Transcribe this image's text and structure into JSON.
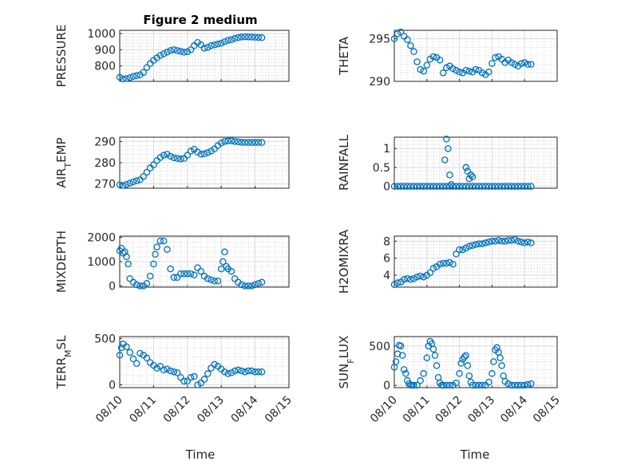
{
  "figure": {
    "title": "Figure 2 medium",
    "xlabel": "Time",
    "marker_color": "#0072bd"
  },
  "x_ticks": [
    "08/10",
    "08/11",
    "08/12",
    "08/13",
    "08/14",
    "08/15"
  ],
  "chart_data": [
    {
      "type": "scatter",
      "id": "pressure",
      "ylabel": "PRESSURE",
      "yticks": [
        800,
        900,
        1000
      ],
      "ylim": [
        705,
        1020
      ],
      "xlim": [
        "08/10",
        "08/15"
      ],
      "grid": true,
      "minor_grid": true,
      "show_xticklabels": false,
      "series": [
        {
          "x": [
            0,
            0.1,
            0.2,
            0.3,
            0.4,
            0.5,
            0.6,
            0.7,
            0.8,
            0.9,
            1.0,
            1.1,
            1.2,
            1.3,
            1.4,
            1.5,
            1.6,
            1.7,
            1.8,
            1.9,
            2.0,
            2.1,
            2.2,
            2.3,
            2.4,
            2.5,
            2.6,
            2.7,
            2.8,
            2.9,
            3.0,
            3.1,
            3.2,
            3.3,
            3.4,
            3.5,
            3.6,
            3.7,
            3.8,
            3.9,
            4.0,
            4.1,
            4.2
          ],
          "y": [
            730,
            720,
            722,
            728,
            735,
            740,
            745,
            760,
            790,
            815,
            835,
            850,
            865,
            875,
            885,
            895,
            900,
            895,
            890,
            885,
            888,
            900,
            925,
            945,
            930,
            910,
            915,
            925,
            930,
            935,
            940,
            950,
            958,
            962,
            970,
            975,
            978,
            980,
            979,
            978,
            977,
            976,
            975
          ]
        }
      ]
    },
    {
      "type": "scatter",
      "id": "theta",
      "ylabel": "THETA",
      "yticks": [
        290,
        295
      ],
      "ylim": [
        290,
        296
      ],
      "xlim": [
        "08/10",
        "08/15"
      ],
      "grid": true,
      "minor_grid": true,
      "show_xticklabels": false,
      "series": [
        {
          "x": [
            0,
            0.1,
            0.2,
            0.3,
            0.4,
            0.5,
            0.6,
            0.7,
            0.8,
            0.9,
            1.0,
            1.1,
            1.2,
            1.3,
            1.4,
            1.5,
            1.6,
            1.7,
            1.8,
            1.9,
            2.0,
            2.1,
            2.2,
            2.3,
            2.4,
            2.5,
            2.6,
            2.7,
            2.8,
            2.9,
            3.0,
            3.1,
            3.2,
            3.3,
            3.4,
            3.5,
            3.6,
            3.7,
            3.8,
            3.9,
            4.0,
            4.1,
            4.2
          ],
          "y": [
            295.0,
            295.6,
            295.8,
            295.3,
            294.9,
            294.2,
            293.5,
            292.3,
            291.4,
            291.2,
            291.9,
            292.6,
            292.9,
            292.8,
            292.5,
            291.0,
            291.6,
            291.8,
            291.5,
            291.3,
            291.1,
            291.0,
            291.3,
            291.2,
            291.1,
            291.4,
            291.3,
            291.0,
            290.8,
            291.1,
            292.1,
            292.8,
            292.9,
            292.6,
            292.2,
            292.5,
            292.2,
            292.0,
            291.8,
            292.1,
            292.2,
            292.0,
            292.0
          ]
        }
      ]
    },
    {
      "type": "scatter",
      "id": "air_temp",
      "ylabel": "AIR_TEMP",
      "yticks": [
        270,
        280,
        290
      ],
      "ylim": [
        268,
        292
      ],
      "xlim": [
        "08/10",
        "08/15"
      ],
      "grid": true,
      "minor_grid": true,
      "show_xticklabels": false,
      "series": [
        {
          "x": [
            0,
            0.1,
            0.2,
            0.3,
            0.4,
            0.5,
            0.6,
            0.7,
            0.8,
            0.9,
            1.0,
            1.1,
            1.2,
            1.3,
            1.4,
            1.5,
            1.6,
            1.7,
            1.8,
            1.9,
            2.0,
            2.1,
            2.2,
            2.3,
            2.4,
            2.5,
            2.6,
            2.7,
            2.8,
            2.9,
            3.0,
            3.1,
            3.2,
            3.3,
            3.4,
            3.5,
            3.6,
            3.7,
            3.8,
            3.9,
            4.0,
            4.1,
            4.2
          ],
          "y": [
            269.6,
            269.3,
            269.8,
            270.4,
            271.0,
            271.5,
            272.0,
            273.5,
            275.5,
            277.5,
            279.0,
            281.0,
            282.5,
            283.5,
            284.0,
            283.0,
            282.3,
            282.0,
            281.8,
            282.0,
            283.5,
            285.5,
            286.3,
            285.0,
            284.0,
            284.2,
            284.8,
            285.5,
            286.5,
            288.0,
            289.3,
            290.0,
            290.2,
            290.3,
            290.0,
            289.8,
            289.6,
            289.5,
            289.5,
            289.5,
            289.5,
            289.5,
            289.5
          ]
        }
      ]
    },
    {
      "type": "scatter",
      "id": "rainfall",
      "ylabel": "RAINFALL",
      "yticks": [
        0,
        0.5,
        1
      ],
      "ylim": [
        -0.05,
        1.3
      ],
      "ytick_labels": [
        "0",
        "0.5",
        "1"
      ],
      "xlim": [
        "08/10",
        "08/15"
      ],
      "grid": true,
      "minor_grid": true,
      "show_xticklabels": false,
      "series": [
        {
          "x": [
            0,
            0.1,
            0.2,
            0.3,
            0.4,
            0.5,
            0.6,
            0.7,
            0.8,
            0.9,
            1.0,
            1.1,
            1.2,
            1.3,
            1.4,
            1.5,
            1.6,
            1.7,
            1.8,
            1.9,
            2.0,
            2.1,
            2.2,
            2.3,
            2.4,
            2.5,
            2.6,
            2.7,
            2.8,
            2.9,
            3.0,
            3.1,
            3.2,
            3.3,
            3.4,
            3.5,
            3.6,
            3.7,
            3.8,
            3.9,
            4.0,
            4.1,
            4.2,
            1.55,
            1.6,
            1.65,
            1.7,
            1.75,
            2.2,
            2.25,
            2.3,
            2.35,
            2.4
          ],
          "y": [
            0,
            0,
            0,
            0,
            0,
            0,
            0,
            0,
            0,
            0,
            0,
            0,
            0,
            0,
            0,
            0,
            0,
            0,
            0,
            0,
            0,
            0,
            0,
            0,
            0,
            0,
            0,
            0,
            0,
            0,
            0,
            0,
            0,
            0,
            0,
            0,
            0,
            0,
            0,
            0,
            0,
            0,
            0,
            0.7,
            1.25,
            1.0,
            0.3,
            0.05,
            0.5,
            0.4,
            0.2,
            0.3,
            0.25
          ]
        }
      ]
    },
    {
      "type": "scatter",
      "id": "mixdepth",
      "ylabel": "MIXDEPTH",
      "yticks": [
        0,
        1000,
        2000
      ],
      "ylim": [
        -50,
        2050
      ],
      "xlim": [
        "08/10",
        "08/15"
      ],
      "grid": true,
      "minor_grid": true,
      "show_xticklabels": false,
      "series": [
        {
          "x": [
            0,
            0.05,
            0.1,
            0.15,
            0.2,
            0.25,
            0.3,
            0.4,
            0.5,
            0.6,
            0.7,
            0.8,
            0.9,
            1.0,
            1.05,
            1.1,
            1.2,
            1.3,
            1.4,
            1.5,
            1.6,
            1.7,
            1.8,
            1.9,
            2.0,
            2.1,
            2.2,
            2.3,
            2.4,
            2.5,
            2.6,
            2.7,
            2.8,
            2.9,
            3.0,
            3.05,
            3.1,
            3.15,
            3.2,
            3.3,
            3.4,
            3.5,
            3.6,
            3.7,
            3.8,
            3.9,
            4.0,
            4.1,
            4.2
          ],
          "y": [
            1450,
            1550,
            1350,
            1400,
            1200,
            900,
            300,
            150,
            50,
            0,
            0,
            100,
            400,
            900,
            1300,
            1600,
            1850,
            1850,
            1500,
            700,
            350,
            350,
            500,
            500,
            500,
            500,
            450,
            750,
            600,
            400,
            300,
            250,
            200,
            200,
            700,
            1000,
            1400,
            800,
            700,
            600,
            300,
            150,
            50,
            0,
            0,
            0,
            50,
            100,
            150
          ]
        }
      ]
    },
    {
      "type": "scatter",
      "id": "h2omixra",
      "ylabel": "H2OMIXRA",
      "yticks": [
        4,
        6,
        8
      ],
      "ylim": [
        2.6,
        8.6
      ],
      "xlim": [
        "08/10",
        "08/15"
      ],
      "grid": true,
      "minor_grid": true,
      "show_xticklabels": false,
      "series": [
        {
          "x": [
            0,
            0.1,
            0.2,
            0.3,
            0.4,
            0.5,
            0.6,
            0.7,
            0.8,
            0.9,
            1.0,
            1.1,
            1.2,
            1.3,
            1.4,
            1.5,
            1.6,
            1.7,
            1.8,
            1.9,
            2.0,
            2.1,
            2.2,
            2.3,
            2.4,
            2.5,
            2.6,
            2.7,
            2.8,
            2.9,
            3.0,
            3.1,
            3.2,
            3.3,
            3.4,
            3.5,
            3.6,
            3.7,
            3.8,
            3.9,
            4.0,
            4.1,
            4.2
          ],
          "y": [
            2.9,
            3.1,
            3.2,
            3.5,
            3.6,
            3.5,
            3.6,
            3.8,
            3.9,
            3.8,
            4.0,
            4.3,
            4.8,
            5.0,
            5.3,
            5.4,
            5.4,
            5.5,
            5.3,
            6.5,
            7.0,
            7.0,
            7.2,
            7.4,
            7.5,
            7.6,
            7.7,
            7.7,
            7.8,
            7.9,
            8.0,
            8.0,
            8.1,
            8.0,
            8.0,
            8.1,
            8.1,
            8.2,
            8.0,
            7.9,
            7.8,
            7.9,
            7.8
          ]
        }
      ]
    },
    {
      "type": "scatter",
      "id": "terr_msl",
      "ylabel": "TERR_MSL",
      "yticks": [
        0,
        500
      ],
      "ylim": [
        -30,
        520
      ],
      "xlim": [
        "08/10",
        "08/15"
      ],
      "grid": true,
      "minor_grid": true,
      "show_xticklabels": true,
      "series": [
        {
          "x": [
            0,
            0.05,
            0.1,
            0.2,
            0.3,
            0.4,
            0.5,
            0.6,
            0.7,
            0.8,
            0.9,
            1.0,
            1.1,
            1.2,
            1.3,
            1.4,
            1.5,
            1.6,
            1.7,
            1.8,
            1.9,
            2.0,
            2.1,
            2.2,
            2.3,
            2.4,
            2.5,
            2.6,
            2.7,
            2.8,
            2.9,
            3.0,
            3.1,
            3.2,
            3.3,
            3.4,
            3.5,
            3.6,
            3.7,
            3.8,
            3.9,
            4.0,
            4.1,
            4.2
          ],
          "y": [
            320,
            400,
            440,
            410,
            350,
            280,
            230,
            340,
            320,
            290,
            240,
            210,
            180,
            200,
            160,
            170,
            150,
            140,
            130,
            80,
            40,
            40,
            80,
            90,
            0,
            20,
            60,
            120,
            180,
            220,
            200,
            170,
            140,
            120,
            130,
            150,
            160,
            150,
            140,
            150,
            150,
            140,
            140,
            140
          ]
        }
      ]
    },
    {
      "type": "scatter",
      "id": "sun_flux",
      "ylabel": "SUN_FLUX",
      "yticks": [
        0,
        500
      ],
      "ylim": [
        -30,
        620
      ],
      "xlim": [
        "08/10",
        "08/15"
      ],
      "grid": true,
      "minor_grid": true,
      "show_xticklabels": true,
      "series": [
        {
          "x": [
            0,
            0.05,
            0.1,
            0.15,
            0.2,
            0.25,
            0.3,
            0.35,
            0.4,
            0.45,
            0.5,
            0.55,
            0.6,
            0.7,
            0.8,
            0.9,
            1.0,
            1.05,
            1.1,
            1.15,
            1.2,
            1.25,
            1.3,
            1.35,
            1.4,
            1.45,
            1.5,
            1.6,
            1.7,
            1.8,
            1.9,
            2.0,
            2.05,
            2.1,
            2.15,
            2.2,
            2.25,
            2.3,
            2.35,
            2.4,
            2.5,
            2.6,
            2.7,
            2.8,
            2.9,
            3.0,
            3.05,
            3.1,
            3.15,
            3.2,
            3.25,
            3.3,
            3.35,
            3.4,
            3.5,
            3.6,
            3.7,
            3.8,
            3.9,
            4.0,
            4.1,
            4.2
          ],
          "y": [
            230,
            300,
            400,
            510,
            500,
            380,
            200,
            150,
            60,
            20,
            0,
            0,
            0,
            0,
            60,
            150,
            350,
            500,
            560,
            530,
            460,
            380,
            250,
            100,
            30,
            0,
            0,
            0,
            0,
            0,
            30,
            150,
            280,
            330,
            360,
            380,
            250,
            120,
            40,
            0,
            0,
            0,
            0,
            0,
            40,
            150,
            300,
            450,
            480,
            420,
            350,
            250,
            120,
            50,
            20,
            0,
            0,
            0,
            0,
            0,
            10,
            20
          ]
        }
      ]
    }
  ]
}
